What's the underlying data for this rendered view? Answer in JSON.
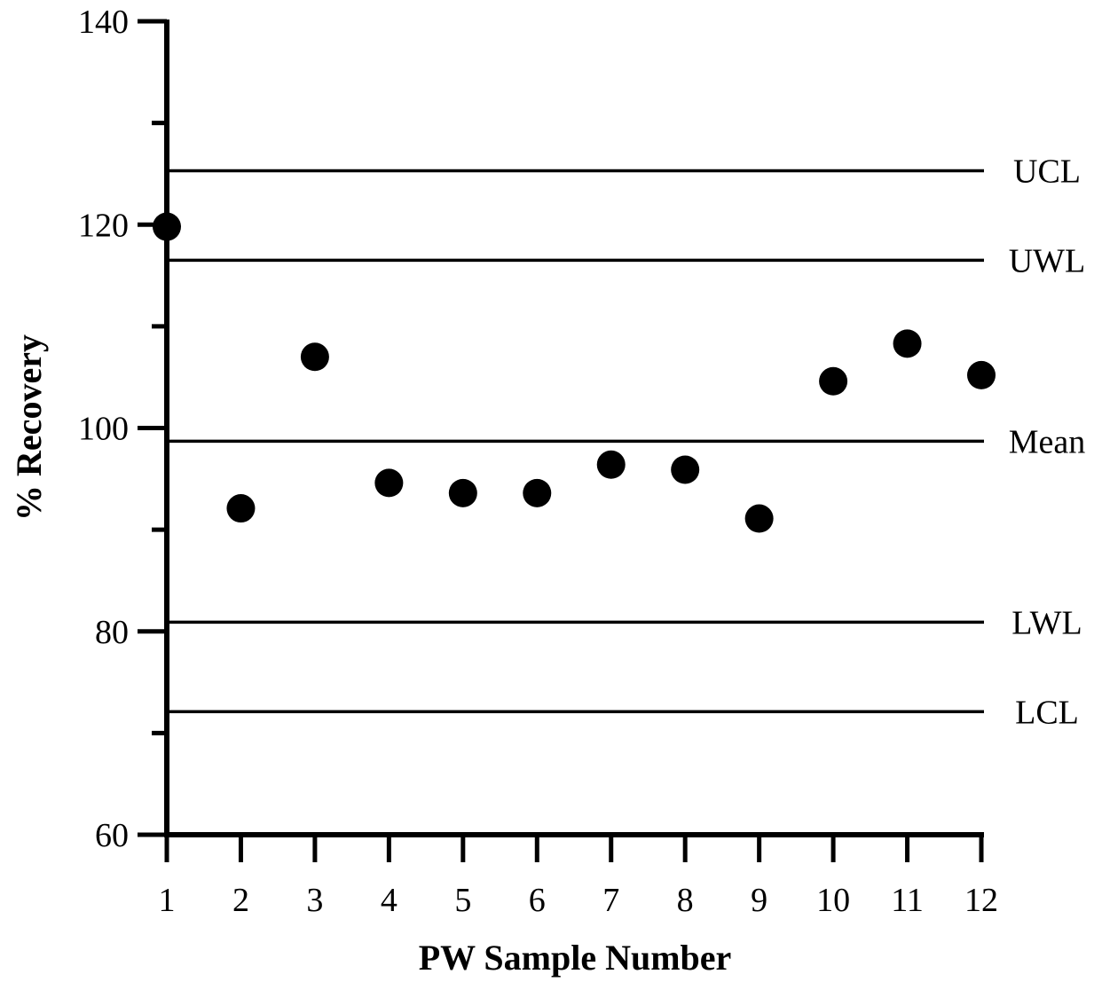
{
  "chart_data": {
    "type": "scatter",
    "title": "",
    "xlabel": "PW Sample Number",
    "ylabel": "% Recovery",
    "xlim": [
      1,
      12
    ],
    "ylim": [
      60,
      140
    ],
    "x_ticks": [
      "1",
      "2",
      "3",
      "4",
      "5",
      "6",
      "7",
      "8",
      "9",
      "10",
      "11",
      "12"
    ],
    "y_ticks": [
      "60",
      "80",
      "100",
      "120",
      "140"
    ],
    "y_minor_ticks": [
      70,
      90,
      110,
      130
    ],
    "grid": false,
    "series": [
      {
        "x": [
          1,
          2,
          3,
          4,
          5,
          6,
          7,
          8,
          9,
          10,
          11,
          12
        ],
        "values": [
          119.8,
          92.1,
          107.0,
          94.6,
          93.6,
          93.6,
          96.4,
          95.9,
          91.1,
          104.6,
          108.3,
          105.2
        ],
        "color": "#000000"
      }
    ],
    "reference_lines": [
      {
        "label": "UCL",
        "value": 125.3
      },
      {
        "label": "UWL",
        "value": 116.5
      },
      {
        "label": "Mean",
        "value": 98.7
      },
      {
        "label": "LWL",
        "value": 80.9
      },
      {
        "label": "LCL",
        "value": 72.1
      }
    ]
  }
}
